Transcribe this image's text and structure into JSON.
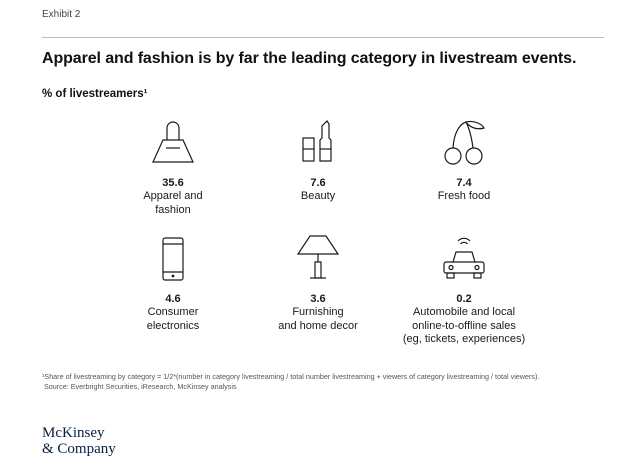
{
  "exhibit": "Exhibit 2",
  "chart_data": {
    "type": "pictogram-table",
    "title": "Apparel and fashion is by far the leading category in livestream events.",
    "subtitle": "% of livestreamers¹",
    "unit": "%",
    "categories": [
      "Apparel and fashion",
      "Beauty",
      "Fresh food",
      "Consumer electronics",
      "Furnishing and home decor",
      "Automobile and local online-to-offline sales (eg, tickets, experiences)"
    ],
    "values": [
      35.6,
      7.6,
      7.4,
      4.6,
      3.6,
      0.2
    ],
    "items": [
      {
        "value": "35.6",
        "label": "Apparel and\nfashion",
        "icon": "handbag-icon"
      },
      {
        "value": "7.6",
        "label": "Beauty",
        "icon": "lipstick-icon"
      },
      {
        "value": "7.4",
        "label": "Fresh food",
        "icon": "cherries-icon"
      },
      {
        "value": "4.6",
        "label": "Consumer\nelectronics",
        "icon": "smartphone-icon"
      },
      {
        "value": "3.6",
        "label": "Furnishing\nand home decor",
        "icon": "lamp-icon"
      },
      {
        "value": "0.2",
        "label": "Automobile and local\nonline-to-offline sales\n(eg, tickets, experiences)",
        "icon": "connected-car-icon"
      }
    ]
  },
  "footnote": {
    "line1": "¹Share of livestreaming by category = 1/2*(number in category livestreaming / total number livestreaming + viewers of category livestreaming / total viewers).",
    "line2": "Source: Everbright Securities, iResearch, McKinsey analysis"
  },
  "logo": {
    "line1": "McKinsey",
    "line2": "& Company"
  },
  "colors": {
    "text": "#1a1a1a",
    "icon_stroke": "#1a1a1a",
    "rule": "#bdbdbd",
    "logo": "#0b1f3a"
  }
}
